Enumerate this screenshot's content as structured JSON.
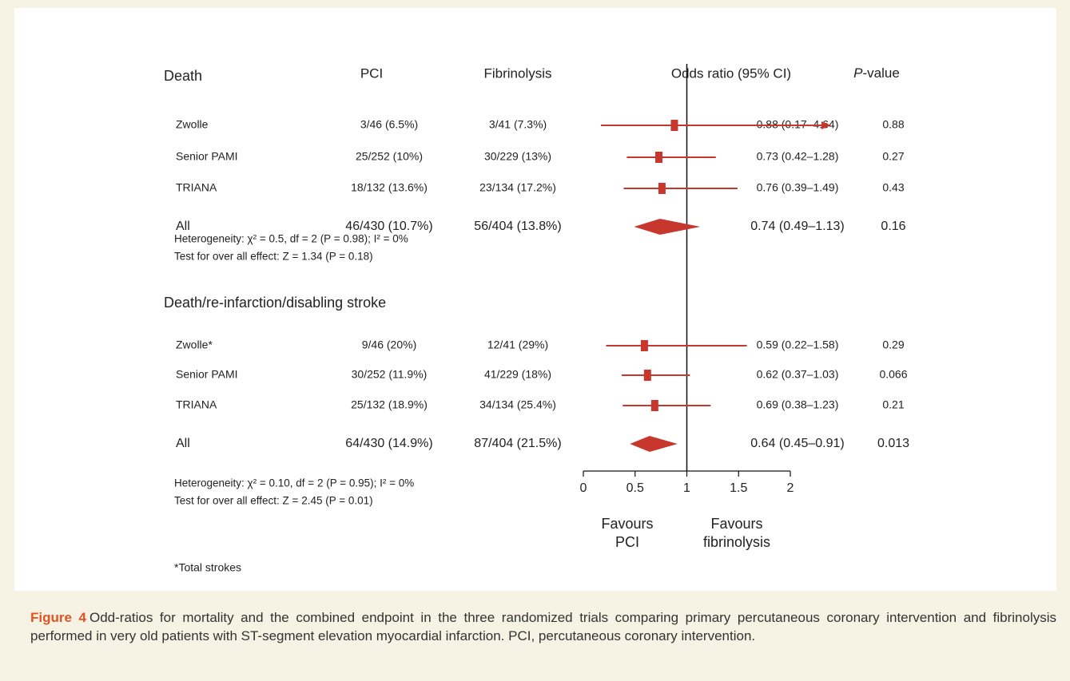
{
  "chart_data": {
    "type": "forest",
    "color": "#c8372d",
    "headers": {
      "pci": "PCI",
      "fib": "Fibrinolysis",
      "or": "Odds ratio (95% CI)",
      "p_italic": "P",
      "p_rest": "-value"
    },
    "xlim": [
      0,
      2
    ],
    "xticks": [
      0,
      0.5,
      1,
      1.5,
      2
    ],
    "reference": 1,
    "favours_left": [
      "Favours",
      "PCI"
    ],
    "favours_right": [
      "Favours",
      "fibrinolysis"
    ],
    "sections": [
      {
        "title": "Death",
        "rows": [
          {
            "study": "Zwolle",
            "pci": "3/46 (6.5%)",
            "fib": "3/41 (7.3%)",
            "or": 0.88,
            "lo": 0.17,
            "hi": 4.64,
            "ci_label": "0.88 (0.17–4.64)",
            "p": 0.88
          },
          {
            "study": "Senior PAMI",
            "pci": "25/252 (10%)",
            "fib": "30/229 (13%)",
            "or": 0.73,
            "lo": 0.42,
            "hi": 1.28,
            "ci_label": "0.73 (0.42–1.28)",
            "p": 0.27
          },
          {
            "study": "TRIANA",
            "pci": "18/132 (13.6%)",
            "fib": "23/134 (17.2%)",
            "or": 0.76,
            "lo": 0.39,
            "hi": 1.49,
            "ci_label": "0.76 (0.39–1.49)",
            "p": 0.43
          }
        ],
        "total": {
          "study": "All",
          "pci": "46/430 (10.7%)",
          "fib": "56/404 (13.8%)",
          "or": 0.74,
          "lo": 0.49,
          "hi": 1.13,
          "ci_label": "0.74 (0.49–1.13)",
          "p": 0.16
        },
        "heterogeneity": "Heterogeneity: χ² = 0.5, df = 2 (P = 0.98); I² = 0%",
        "overall_effect": "Test for over all effect: Z = 1.34 (P = 0.18)"
      },
      {
        "title": "Death/re-infarction/disabling stroke",
        "rows": [
          {
            "study": "Zwolle*",
            "pci": "9/46 (20%)",
            "fib": "12/41 (29%)",
            "or": 0.59,
            "lo": 0.22,
            "hi": 1.58,
            "ci_label": "0.59 (0.22–1.58)",
            "p": 0.29
          },
          {
            "study": "Senior PAMI",
            "pci": "30/252 (11.9%)",
            "fib": "41/229 (18%)",
            "or": 0.62,
            "lo": 0.37,
            "hi": 1.03,
            "ci_label": "0.62 (0.37–1.03)",
            "p": 0.066
          },
          {
            "study": "TRIANA",
            "pci": "25/132 (18.9%)",
            "fib": "34/134 (25.4%)",
            "or": 0.69,
            "lo": 0.38,
            "hi": 1.23,
            "ci_label": "0.69 (0.38–1.23)",
            "p": 0.21
          }
        ],
        "total": {
          "study": "All",
          "pci": "64/430 (14.9%)",
          "fib": "87/404 (21.5%)",
          "or": 0.64,
          "lo": 0.45,
          "hi": 0.91,
          "ci_label": "0.64 (0.45–0.91)",
          "p": 0.013
        },
        "heterogeneity": "Heterogeneity: χ² = 0.10, df = 2 (P = 0.95); I² = 0%",
        "overall_effect": "Test for over all effect: Z = 2.45 (P = 0.01)"
      }
    ],
    "footnote": "*Total strokes",
    "caption": {
      "label": "Figure 4",
      "text": "Odd-ratios for mortality and the combined endpoint in the three randomized trials comparing primary percutaneous coronary intervention and fibrinolysis performed in very old patients with ST-segment elevation myocardial infarction. PCI, percutaneous coronary intervention."
    }
  }
}
